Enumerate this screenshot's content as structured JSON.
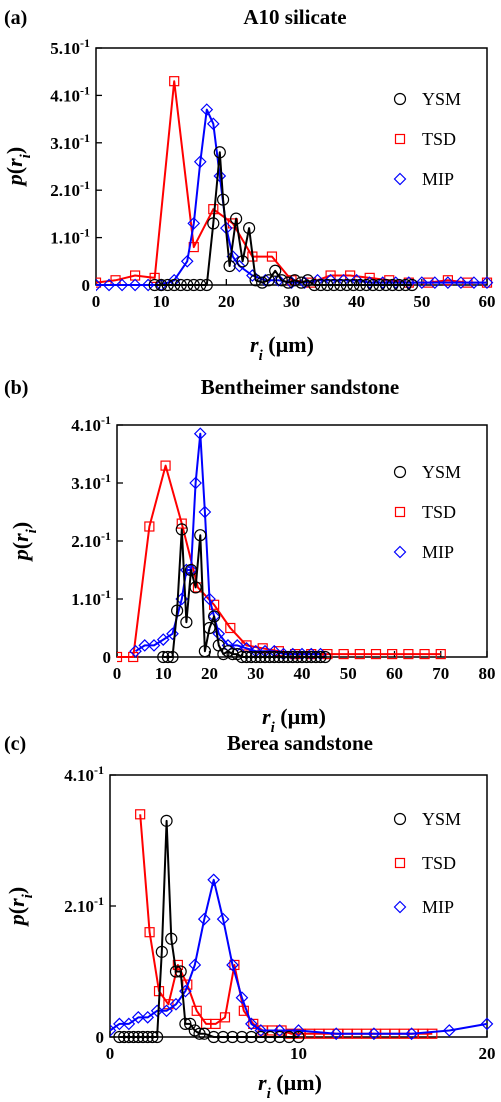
{
  "chart_data": [
    {
      "type": "line",
      "panel_label": "(a)",
      "title": "A10 silicate",
      "xlabel": "r_i (µm)",
      "ylabel": "p(r_i)",
      "xlim": [
        0,
        60
      ],
      "ylim": [
        0,
        0.5
      ],
      "x_ticks": [
        0,
        10,
        20,
        30,
        40,
        50,
        60
      ],
      "y_ticks": [
        {
          "value": 0,
          "label": "0"
        },
        {
          "value": 0.1,
          "label": "1.10",
          "exp": "-1"
        },
        {
          "value": 0.2,
          "label": "2.10",
          "exp": "-1"
        },
        {
          "value": 0.3,
          "label": "3.10",
          "exp": "-1"
        },
        {
          "value": 0.4,
          "label": "4.10",
          "exp": "-1"
        },
        {
          "value": 0.5,
          "label": "5.10",
          "exp": "-1"
        }
      ],
      "grid": false,
      "legend_position": "right",
      "series": [
        {
          "name": "YSM",
          "color": "#000000",
          "marker": "circle",
          "x": [
            9,
            10,
            11,
            12,
            13,
            14,
            15,
            16,
            17,
            18,
            19,
            19.5,
            20.5,
            21.5,
            22.5,
            23.5,
            24.5,
            25.5,
            26.5,
            27.5,
            28.5,
            29.5,
            30.5,
            31.5,
            32.5,
            33.5,
            34.5,
            35.5,
            36.5,
            37.5,
            38.5,
            39.5,
            40.5,
            41.5,
            42.5,
            43.5,
            44.5,
            45.5,
            46.5,
            47.5,
            48.5
          ],
          "y": [
            0,
            0,
            0,
            0,
            0,
            0,
            0,
            0,
            0,
            0.13,
            0.28,
            0.18,
            0.04,
            0.14,
            0.05,
            0.12,
            0.01,
            0.005,
            0.01,
            0.03,
            0.01,
            0.005,
            0.01,
            0.005,
            0.01,
            0,
            0,
            0,
            0,
            0,
            0,
            0,
            0,
            0,
            0,
            0,
            0,
            0,
            0,
            0,
            0
          ]
        },
        {
          "name": "TSD",
          "color": "#ff0000",
          "marker": "square",
          "x": [
            0,
            3,
            6,
            9,
            12,
            15,
            18,
            21,
            24,
            27,
            30,
            33,
            36,
            39,
            42,
            45,
            48,
            51,
            54,
            57,
            60
          ],
          "y": [
            0.005,
            0.01,
            0.02,
            0.015,
            0.43,
            0.08,
            0.16,
            0.13,
            0.06,
            0.06,
            0.01,
            0.005,
            0.02,
            0.02,
            0.015,
            0.01,
            0.005,
            0.005,
            0.01,
            0.005,
            0.005
          ]
        },
        {
          "name": "MIP",
          "color": "#0000ff",
          "marker": "diamond",
          "x": [
            0,
            2,
            4,
            6,
            8,
            10,
            12,
            14,
            15,
            16,
            17,
            18,
            19,
            20,
            21,
            22,
            24,
            26,
            28,
            30,
            32,
            34,
            36,
            38,
            40,
            42,
            44,
            46,
            48,
            50,
            52,
            54,
            56,
            58,
            60
          ],
          "y": [
            0,
            0,
            0,
            0,
            0,
            0,
            0.01,
            0.05,
            0.13,
            0.26,
            0.37,
            0.34,
            0.23,
            0.12,
            0.06,
            0.04,
            0.02,
            0.01,
            0.01,
            0.005,
            0.005,
            0.01,
            0.01,
            0.01,
            0.01,
            0.005,
            0.005,
            0.005,
            0.005,
            0.005,
            0.005,
            0.005,
            0.005,
            0.005,
            0.005
          ]
        }
      ]
    },
    {
      "type": "line",
      "panel_label": "(b)",
      "title": "Bentheimer sandstone",
      "xlabel": "r_i (µm)",
      "ylabel": "p(r_i)",
      "xlim": [
        0,
        80
      ],
      "ylim": [
        0,
        0.4
      ],
      "x_ticks": [
        0,
        10,
        20,
        30,
        40,
        50,
        60,
        70,
        80
      ],
      "y_ticks": [
        {
          "value": 0,
          "label": "0"
        },
        {
          "value": 0.1,
          "label": "1.10",
          "exp": "-1"
        },
        {
          "value": 0.2,
          "label": "2.10",
          "exp": "-1"
        },
        {
          "value": 0.3,
          "label": "3.10",
          "exp": "-1"
        },
        {
          "value": 0.4,
          "label": "4.10",
          "exp": "-1"
        }
      ],
      "grid": false,
      "legend_position": "right",
      "series": [
        {
          "name": "YSM",
          "color": "#000000",
          "marker": "circle",
          "x": [
            10,
            11,
            12,
            13,
            14,
            15,
            16,
            17,
            18,
            19,
            20,
            21,
            22,
            23,
            24,
            25,
            26,
            27,
            28,
            29,
            30,
            31,
            32,
            33,
            34,
            35,
            36,
            37,
            38,
            39,
            40,
            41,
            42,
            43,
            44,
            45
          ],
          "y": [
            0,
            0,
            0,
            0.08,
            0.22,
            0.06,
            0.15,
            0.12,
            0.21,
            0.01,
            0.05,
            0.07,
            0.02,
            0.005,
            0.01,
            0.005,
            0.005,
            0,
            0,
            0,
            0,
            0,
            0,
            0,
            0,
            0,
            0,
            0,
            0,
            0,
            0,
            0,
            0,
            0,
            0,
            0
          ]
        },
        {
          "name": "TSD",
          "color": "#ff0000",
          "marker": "square",
          "x": [
            0,
            3.5,
            7,
            10.5,
            14,
            17.5,
            21,
            24.5,
            28,
            31.5,
            35,
            38.5,
            42,
            45.5,
            49,
            52.5,
            56,
            59.5,
            63,
            66.5,
            70
          ],
          "y": [
            0,
            0,
            0.225,
            0.33,
            0.23,
            0.12,
            0.09,
            0.05,
            0.02,
            0.015,
            0.01,
            0.005,
            0.005,
            0.005,
            0.005,
            0.005,
            0.005,
            0.005,
            0.005,
            0.005,
            0.005
          ]
        },
        {
          "name": "MIP",
          "color": "#0000ff",
          "marker": "diamond",
          "x": [
            4,
            6,
            8,
            10,
            12,
            14,
            15,
            16,
            17,
            18,
            19,
            20,
            21,
            22,
            24,
            26,
            28,
            30,
            32,
            34,
            36,
            38,
            40,
            42,
            44
          ],
          "y": [
            0.01,
            0.02,
            0.02,
            0.03,
            0.04,
            0.1,
            0.15,
            0.15,
            0.3,
            0.385,
            0.25,
            0.1,
            0.07,
            0.04,
            0.02,
            0.02,
            0.015,
            0.01,
            0.01,
            0.01,
            0.005,
            0.005,
            0.005,
            0.005,
            0.005
          ]
        }
      ]
    },
    {
      "type": "line",
      "panel_label": "(c)",
      "title": "Berea sandstone",
      "xlabel": "r_i (µm)",
      "ylabel": "p(r_i)",
      "xlim": [
        0,
        20
      ],
      "ylim": [
        0,
        0.4
      ],
      "x_ticks": [
        0,
        10,
        20
      ],
      "y_ticks": [
        {
          "value": 0,
          "label": "0"
        },
        {
          "value": 0.2,
          "label": "2.10",
          "exp": "-1"
        },
        {
          "value": 0.4,
          "label": "4.10",
          "exp": "-1"
        }
      ],
      "grid": false,
      "legend_position": "right",
      "series": [
        {
          "name": "YSM",
          "color": "#000000",
          "marker": "circle",
          "x": [
            0.5,
            0.75,
            1,
            1.25,
            1.5,
            1.75,
            2,
            2.25,
            2.5,
            2.75,
            3,
            3.25,
            3.5,
            3.75,
            4,
            4.25,
            4.5,
            4.75,
            5,
            5.5,
            6,
            6.5,
            7,
            7.5,
            8,
            8.5,
            9,
            9.5,
            10
          ],
          "y": [
            0,
            0,
            0,
            0,
            0,
            0,
            0,
            0,
            0,
            0.13,
            0.33,
            0.15,
            0.1,
            0.1,
            0.02,
            0.02,
            0.01,
            0.005,
            0.005,
            0,
            0,
            0,
            0,
            0,
            0,
            0,
            0,
            0,
            0
          ]
        },
        {
          "name": "TSD",
          "color": "#ff0000",
          "marker": "square",
          "x": [
            1.6,
            2.1,
            2.6,
            3.1,
            3.6,
            4.1,
            4.6,
            5.1,
            5.6,
            6.1,
            6.6,
            7.1,
            7.6,
            8.1,
            8.6,
            9.1,
            9.6,
            10.1,
            10.6,
            11.1,
            11.6,
            12.1,
            12.6,
            13.1,
            13.6,
            14.1,
            14.6,
            15.1,
            15.6,
            16.1,
            16.6,
            17.1
          ],
          "y": [
            0.34,
            0.16,
            0.07,
            0.05,
            0.11,
            0.08,
            0.04,
            0.02,
            0.02,
            0.03,
            0.11,
            0.04,
            0.02,
            0.01,
            0.01,
            0.01,
            0.005,
            0.005,
            0.005,
            0.005,
            0.005,
            0.005,
            0.005,
            0.005,
            0.005,
            0.005,
            0.005,
            0.005,
            0.005,
            0.005,
            0.005,
            0.005
          ]
        },
        {
          "name": "MIP",
          "color": "#0000ff",
          "marker": "diamond",
          "x": [
            0,
            0.5,
            1,
            1.5,
            2,
            2.5,
            3,
            3.5,
            4,
            4.5,
            5,
            5.5,
            6,
            6.5,
            7,
            7.5,
            8,
            9,
            10,
            12,
            14,
            16,
            18,
            20
          ],
          "y": [
            0.01,
            0.02,
            0.02,
            0.03,
            0.03,
            0.04,
            0.04,
            0.05,
            0.07,
            0.11,
            0.18,
            0.24,
            0.18,
            0.11,
            0.06,
            0.02,
            0.01,
            0.01,
            0.01,
            0.005,
            0.005,
            0.005,
            0.01,
            0.02
          ]
        }
      ]
    }
  ]
}
